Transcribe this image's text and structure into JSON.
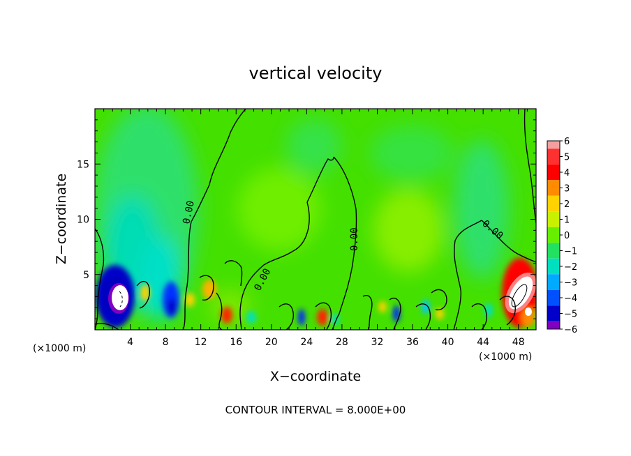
{
  "chart_data": {
    "type": "heatmap",
    "title": "vertical velocity",
    "xlabel": "X−coordinate",
    "ylabel": "Z−coordinate",
    "x_unit_left": "(×1000 m)",
    "x_unit_right": "(×1000 m)",
    "xlim": [
      0,
      50
    ],
    "ylim": [
      0,
      20
    ],
    "x_ticks": [
      4,
      8,
      12,
      16,
      20,
      24,
      28,
      32,
      36,
      40,
      44,
      48
    ],
    "x_tick_labels": [
      "4",
      "8",
      "12",
      "16",
      "20",
      "24",
      "28",
      "32",
      "36",
      "40",
      "44",
      "48"
    ],
    "y_ticks": [
      5,
      10,
      15
    ],
    "y_tick_labels": [
      "5",
      "10",
      "15"
    ],
    "colorbar": {
      "levels": [
        6,
        5,
        4,
        3,
        2,
        1,
        0,
        -1,
        -2,
        -3,
        -4,
        -5,
        -6
      ],
      "labels": [
        "6",
        "5",
        "4",
        "3",
        "2",
        "1",
        "0",
        "−1",
        "−2",
        "−3",
        "−4",
        "−5",
        "−6"
      ],
      "colors": [
        "#f4a0a0",
        "#ff3030",
        "#ff0000",
        "#ff8c00",
        "#ffd200",
        "#c8f000",
        "#66f000",
        "#22e060",
        "#00e0c0",
        "#00aaff",
        "#0050ff",
        "#0000c8",
        "#8000c0"
      ]
    },
    "contour_labels": [
      "0.00",
      "0.00",
      "0.00",
      "0.00"
    ],
    "contour_interval_text": "CONTOUR INTERVAL = 8.000E+00",
    "features": [
      {
        "x": 3.0,
        "z": 3.0,
        "value": -8,
        "note": "strong downdraft"
      },
      {
        "x": 8.5,
        "z": 2.5,
        "value": -4
      },
      {
        "x": 15.0,
        "z": 1.5,
        "value": 4
      },
      {
        "x": 23.8,
        "z": 1.3,
        "value": -4
      },
      {
        "x": 25.8,
        "z": 1.2,
        "value": 5
      },
      {
        "x": 34.0,
        "z": 1.3,
        "value": -4
      },
      {
        "x": 48.5,
        "z": 3.5,
        "value": 8,
        "note": "strong updraft"
      }
    ]
  }
}
